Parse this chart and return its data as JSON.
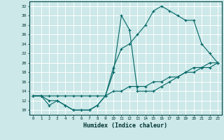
{
  "xlabel": "Humidex (Indice chaleur)",
  "bg_color": "#cce8e8",
  "grid_color": "#ffffff",
  "line_color": "#006666",
  "xlim": [
    -0.5,
    23.5
  ],
  "ylim": [
    9,
    33
  ],
  "xticks": [
    0,
    1,
    2,
    3,
    4,
    5,
    6,
    7,
    8,
    9,
    10,
    11,
    12,
    13,
    14,
    15,
    16,
    17,
    18,
    19,
    20,
    21,
    22,
    23
  ],
  "yticks": [
    10,
    12,
    14,
    16,
    18,
    20,
    22,
    24,
    26,
    28,
    30,
    32
  ],
  "line1_x": [
    0,
    1,
    2,
    3,
    4,
    5,
    6,
    7,
    8,
    9,
    10,
    11,
    12,
    13,
    14,
    15,
    16,
    17,
    18,
    19,
    20,
    21,
    22,
    23
  ],
  "line1_y": [
    13,
    13,
    11,
    12,
    11,
    10,
    10,
    10,
    11,
    13,
    18,
    30,
    27,
    14,
    14,
    14,
    15,
    16,
    17,
    18,
    19,
    19,
    20,
    20
  ],
  "line2_x": [
    0,
    1,
    2,
    3,
    4,
    5,
    6,
    7,
    8,
    9,
    10,
    11,
    12,
    13,
    14,
    15,
    16,
    17,
    18,
    19,
    20,
    21,
    22,
    23
  ],
  "line2_y": [
    13,
    13,
    13,
    13,
    13,
    13,
    13,
    13,
    13,
    13,
    14,
    14,
    15,
    15,
    15,
    16,
    16,
    17,
    17,
    18,
    18,
    19,
    19,
    20
  ],
  "line3_x": [
    0,
    1,
    2,
    3,
    4,
    5,
    6,
    7,
    8,
    9,
    10,
    11,
    12,
    13,
    14,
    15,
    16,
    17,
    18,
    19,
    20,
    21,
    22,
    23
  ],
  "line3_y": [
    13,
    13,
    12,
    12,
    11,
    10,
    10,
    10,
    11,
    13,
    19,
    23,
    24,
    26,
    28,
    31,
    32,
    31,
    30,
    29,
    29,
    24,
    22,
    20
  ]
}
